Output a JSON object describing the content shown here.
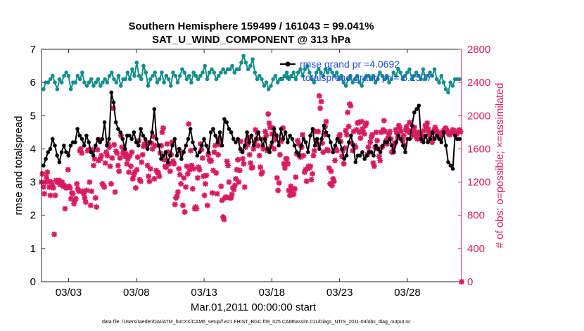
{
  "chart_data": {
    "type": "line",
    "title_line1": "Southern Hemisphere 159499 / 161043 = 99.041%",
    "title_line2": "SAT_U_WIND_COMPONENT @ 313 hPa",
    "xlabel": "Mar.01,2011 00:00:00 start",
    "ylabel_left": "rmse and totalspread",
    "ylabel_right": "# of obs: o=possible; ×=assimilated",
    "footnote": "data file: /Users/raeder/DAI/ATM_forcXX/CAM6_setup/f.e21.FHIST_BGC.f09_025.CAM6assim.011/Diags_NTrS_2011-03/obs_diag_output.nc",
    "xlim": [
      1.0,
      32.0
    ],
    "ylim_left": [
      0,
      7
    ],
    "ylim_right": [
      0,
      2800
    ],
    "x_ticks": [
      3,
      8,
      13,
      18,
      23,
      28
    ],
    "x_tick_labels": [
      "03/03",
      "03/08",
      "03/13",
      "03/18",
      "03/23",
      "03/28"
    ],
    "y_ticks_left": [
      "0",
      "1",
      "2",
      "3",
      "4",
      "5",
      "6",
      "7"
    ],
    "y_ticks_right": [
      "0",
      "400",
      "800",
      "1200",
      "1600",
      "2000",
      "2400",
      "2800"
    ],
    "legend": [
      {
        "label": "rmse grand pr =4.0692",
        "color": "#000000"
      },
      {
        "label": "totalspread grand pr = 6.1577",
        "color": "#138d8a"
      }
    ],
    "series_colors": {
      "rmse": "#000000",
      "totalspread": "#138d8a",
      "obs": "#d81b60"
    },
    "start_day": 1.0,
    "step_days": 0.25,
    "series": [
      {
        "name": "rmse",
        "axis": "left",
        "values": [
          3.5,
          3.7,
          3.9,
          4.0,
          4.3,
          4.1,
          3.8,
          3.6,
          3.9,
          4.1,
          3.9,
          3.8,
          4.1,
          4.2,
          4.2,
          4.6,
          4.4,
          4.3,
          4.1,
          4.4,
          4.2,
          3.9,
          3.8,
          4.1,
          4.3,
          4.2,
          4.3,
          4.8,
          4.1,
          4.3,
          5.7,
          5.4,
          4.8,
          4.6,
          4.5,
          4.3,
          4.0,
          4.4,
          4.4,
          4.3,
          4.5,
          4.2,
          4.1,
          4.6,
          4.4,
          4.3,
          4.0,
          4.2,
          4.5,
          5.2,
          4.3,
          4.1,
          3.7,
          3.8,
          3.9,
          3.6,
          3.8,
          4.1,
          4.3,
          3.8,
          4.0,
          3.7,
          3.9,
          4.1,
          4.3,
          4.6,
          4.2,
          4.0,
          3.8,
          3.9,
          4.1,
          4.3,
          4.1,
          3.9,
          4.5,
          4.6,
          4.4,
          4.2,
          4.5,
          4.1,
          4.9,
          4.8,
          4.6,
          4.5,
          4.3,
          4.2,
          4.3,
          4.0,
          3.9,
          4.1,
          4.5,
          4.2,
          4.4,
          4.1,
          4.3,
          4.5,
          4.3,
          4.1,
          4.3,
          4.0,
          3.9,
          4.2,
          4.6,
          4.4,
          4.1,
          4.6,
          4.3,
          4.5,
          4.2,
          4.4,
          4.3,
          4.1,
          3.9,
          3.8,
          4.1,
          4.3,
          4.2,
          3.9,
          4.4,
          4.6,
          4.1,
          4.3,
          4.0,
          4.3,
          4.7,
          4.5,
          4.4,
          4.2,
          3.9,
          4.1,
          4.3,
          4.2,
          4.0,
          3.7,
          3.8,
          4.2,
          4.4,
          4.1,
          3.6,
          3.8,
          3.8,
          3.9,
          3.7,
          3.8,
          3.9,
          3.9,
          3.8,
          4.1,
          4.0,
          3.9,
          4.1,
          4.2,
          4.2,
          4.3,
          4.1,
          3.9,
          4.2,
          4.4,
          4.3,
          4.1,
          3.9,
          4.3,
          4.3,
          4.7,
          5.1,
          5.2,
          5.3,
          4.3,
          4.2,
          4.4,
          4.2,
          4.3,
          4.5,
          4.3,
          4.4,
          4.3,
          4.2,
          4.5,
          4.1,
          3.6,
          3.5,
          3.4,
          4.4,
          4.3,
          4.3
        ]
      },
      {
        "name": "totalspread",
        "axis": "left",
        "values": [
          5.8,
          6.0,
          6.0,
          6.1,
          6.2,
          6.0,
          5.8,
          6.1,
          6.0,
          6.2,
          6.3,
          6.2,
          5.8,
          6.0,
          6.0,
          6.2,
          6.1,
          6.3,
          6.0,
          5.9,
          6.0,
          6.1,
          5.9,
          6.0,
          6.1,
          5.9,
          6.0,
          6.1,
          6.0,
          6.2,
          6.3,
          6.1,
          6.0,
          6.2,
          5.9,
          6.1,
          6.1,
          6.3,
          6.1,
          6.4,
          6.2,
          6.6,
          6.2,
          6.1,
          6.5,
          6.3,
          5.9,
          6.1,
          6.2,
          6.3,
          6.0,
          6.1,
          6.3,
          6.0,
          6.2,
          6.1,
          5.9,
          6.3,
          6.2,
          6.0,
          6.2,
          6.4,
          6.3,
          6.1,
          6.2,
          6.0,
          6.3,
          6.2,
          6.1,
          6.2,
          6.3,
          6.5,
          6.1,
          6.3,
          6.4,
          6.3,
          6.1,
          6.2,
          6.3,
          6.4,
          6.3,
          6.4,
          6.4,
          6.5,
          6.3,
          6.4,
          6.4,
          6.6,
          6.8,
          6.6,
          6.4,
          6.5,
          6.7,
          6.3,
          6.1,
          6.2,
          6.1,
          5.9,
          6.0,
          5.8,
          5.9,
          6.1,
          6.2,
          6.0,
          6.1,
          6.1,
          6.2,
          6.3,
          6.1,
          6.2,
          6.3,
          6.1,
          6.3,
          6.4,
          6.2,
          6.4,
          6.5,
          6.3,
          6.1,
          6.0,
          6.3,
          6.4,
          6.3,
          6.2,
          6.4,
          6.3,
          6.4,
          6.3,
          6.2,
          6.3,
          6.1,
          6.2,
          6.0,
          5.9,
          6.1,
          6.2,
          6.0,
          6.1,
          6.2,
          6.0,
          5.9,
          6.1,
          6.2,
          6.2,
          6.1,
          6.2,
          6.0,
          6.1,
          6.3,
          6.2,
          6.1,
          6.2,
          6.0,
          6.1,
          6.3,
          6.2,
          6.4,
          6.3,
          6.1,
          6.2,
          6.3,
          6.4,
          6.1,
          6.2,
          6.3,
          6.2,
          6.1,
          6.4,
          6.1,
          6.2,
          6.3,
          6.2,
          6.4,
          6.1,
          6.0,
          6.2,
          6.0,
          5.8,
          5.7,
          6.0,
          5.9,
          6.1,
          6.1,
          6.1
        ]
      },
      {
        "name": "obs_count",
        "axis": "right",
        "values": [
          1200,
          1300,
          1140,
          1060,
          1200,
          1260,
          1320,
          1210,
          1140,
          1040,
          1200,
          1160,
          1130,
          570,
          1040,
          1220,
          1200,
          1200,
          1220,
          1170,
          1180,
          1200,
          1150,
          1160,
          880,
          1130,
          1140,
          1350,
          1150,
          1130,
          1000,
          1070,
          1060,
          940,
          980,
          1000,
          1180,
          1120,
          1090,
          1580,
          1600,
          1550,
          1090,
          1060,
          1010,
          960,
          1100,
          1580,
          1590,
          1200,
          920,
          1090,
          1590,
          1400,
          1480,
          1010,
          900,
          1590,
          1460,
          1710,
          1480,
          1520,
          1180,
          1160,
          1140,
          1430,
          1560,
          1520,
          1660,
          1620,
          1390,
          1180,
          1490,
          2090,
          1650,
          1080,
          1570,
          1550,
          1400,
          1330,
          1490,
          1760,
          1620,
          1550,
          1580,
          1510,
          1540,
          1420,
          1480,
          1320,
          1520,
          1390,
          1560,
          1240,
          1290,
          1320,
          1130,
          1350,
          1500,
          1700,
          1230,
          1210,
          1440,
          1530,
          1630,
          1660,
          1650,
          1680,
          1400,
          1270,
          1210,
          1360,
          1670,
          1600,
          1750,
          1240,
          1640,
          1340,
          1320,
          1310,
          1270,
          1550,
          1640,
          1800,
          1850,
          1470,
          1390,
          1380,
          1660,
          1560,
          1420,
          1330,
          1530,
          1680,
          1450,
          1420,
          930,
          1010,
          1030,
          1080,
          1360,
          1290,
          1180,
          1560,
          920,
          1250,
          840,
          1140,
          1390,
          1300,
          1900,
          1350,
          1580,
          1400,
          1120,
          1360,
          880,
          900,
          880,
          1250,
          1380,
          1350,
          1660,
          1590,
          1490,
          1270,
          1040,
          1180,
          1280,
          920,
          1530,
          1470,
          1450,
          1460,
          1070,
          1340,
          1560,
          1640,
          1310,
          1060,
          1530,
          1720,
          1650,
          1150,
          980,
          780,
          750,
          1010,
          1020,
          1450,
          1400,
          1200,
          1010,
          1010,
          1050,
          1130,
          1110,
          1160,
          1240,
          1350,
          1470,
          1200,
          1340,
          1690,
          1580,
          1480,
          1420,
          1140,
          1620,
          1700,
          1650,
          1740,
          1530,
          1430,
          1370,
          1380,
          1600,
          1680,
          1830,
          1720,
          1790,
          1640,
          1520,
          1380,
          1300,
          1320,
          1600,
          1720,
          1810,
          1760,
          1580,
          2020,
          1910,
          1860,
          1630,
          1780,
          1850,
          1600,
          1710,
          1760,
          1250,
          1100,
          1190,
          1530,
          1690,
          1710,
          1850,
          1420,
          1370,
          1480,
          1480,
          1420,
          1100,
          1040,
          1150,
          1110,
          1050,
          1060,
          1120,
          1260,
          1540,
          1700,
          1660,
          1520,
          1500,
          1620,
          1770,
          1520,
          1320,
          1350,
          1210,
          1360,
          1390,
          1370,
          1390,
          1230,
          1300,
          1520,
          1580,
          1810,
          1700,
          1650,
          1810,
          2240,
          2090,
          2170,
          1670,
          1560,
          1770,
          1870,
          1930,
          1590,
          1580,
          1370,
          1180,
          1330,
          1160,
          1240,
          1210,
          1460,
          1600,
          1580,
          1710,
          1740,
          1770,
          1690,
          1510,
          1580,
          1420,
          1610,
          1820,
          1770,
          2040,
          1870,
          2140,
          2120,
          1670,
          1580,
          1810,
          1640,
          1620,
          1830,
          1910,
          1920,
          1800,
          1730,
          1930,
          1840,
          1800,
          1780,
          1880,
          1910,
          1530,
          1620,
          1560,
          1680,
          1740,
          1770,
          1430,
          1390,
          1620,
          1800,
          1700,
          1600,
          1510,
          1460,
          1800,
          1620,
          1830,
          1940,
          1810,
          1700,
          1660,
          1730,
          1770,
          1810,
          1720,
          1560,
          1580,
          1640,
          1670,
          1830,
          1790,
          1730,
          1880,
          1860,
          1810,
          1720,
          1700,
          1760,
          1650,
          1830,
          1870,
          1820,
          1800,
          1920,
          1800,
          1820,
          1760,
          1830,
          1860,
          1790,
          1740,
          1720,
          1800,
          1780,
          1790,
          1720,
          1700,
          1750,
          1820,
          1880,
          1870,
          1910,
          1840,
          1790,
          1750,
          1720,
          1680,
          1800,
          1820,
          1860,
          1830,
          1810,
          1770,
          1750,
          1730,
          1760,
          1800,
          1790,
          1820,
          1840,
          1850,
          1820,
          1800,
          1780,
          1770,
          1790,
          1810,
          1830,
          1820,
          1800,
          1790,
          1780,
          1800,
          1820,
          1830,
          1810,
          0
        ]
      }
    ]
  }
}
